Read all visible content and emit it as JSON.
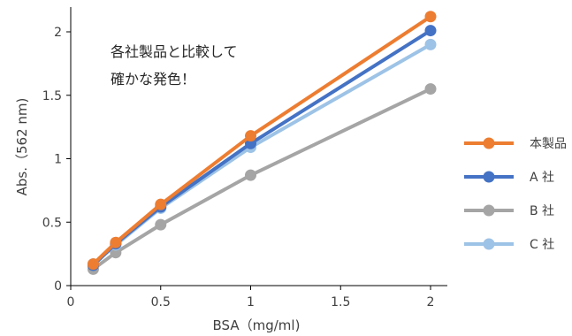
{
  "chart_data": {
    "type": "line",
    "xlabel": "BSA（mg/ml)",
    "ylabel": "Abs.（562 nm)",
    "xlim": [
      0,
      2
    ],
    "ylim": [
      0,
      2
    ],
    "x_ticks": [
      "0",
      "0.5",
      "1",
      "1.5",
      "2"
    ],
    "y_ticks": [
      "0",
      "0.5",
      "1",
      "1.5",
      "2"
    ],
    "x_tick_values": [
      0,
      0.5,
      1,
      1.5,
      2
    ],
    "y_tick_values": [
      0,
      0.5,
      1,
      1.5,
      2
    ],
    "grid": false,
    "legend_position": "right",
    "annotation": [
      "各社製品と比較して",
      "確かな発色！"
    ],
    "x": [
      0.125,
      0.25,
      0.5,
      1,
      2
    ],
    "series": [
      {
        "name": "本製品",
        "color": "#ED7D31",
        "values": [
          0.17,
          0.34,
          0.64,
          1.18,
          2.12
        ]
      },
      {
        "name": "A 社",
        "color": "#4472C4",
        "values": [
          0.16,
          0.33,
          0.62,
          1.12,
          2.01
        ]
      },
      {
        "name": "B 社",
        "color": "#A5A5A5",
        "values": [
          0.13,
          0.26,
          0.48,
          0.87,
          1.55
        ]
      },
      {
        "name": "C 社",
        "color": "#9DC3E6",
        "values": [
          0.17,
          0.32,
          0.61,
          1.09,
          1.9
        ]
      }
    ]
  }
}
